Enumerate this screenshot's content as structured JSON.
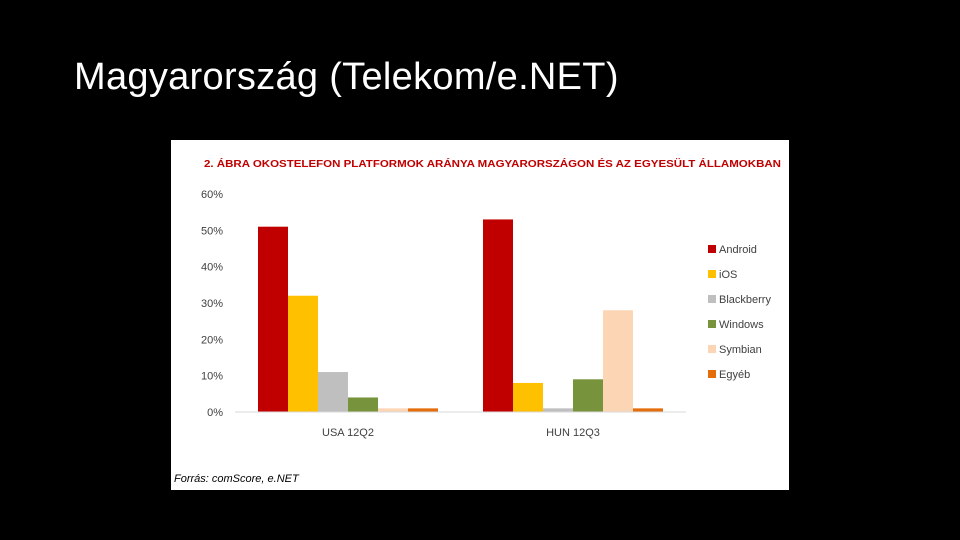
{
  "slide": {
    "title": "Magyarország (Telekom/e.NET)"
  },
  "chart_data": {
    "type": "bar",
    "title": "2. ÁBRA OKOSTELEFON PLATFORMOK ARÁNYA MAGYARORSZÁGON ÉS AZ EGYESÜLT ÁLLAMOKBAN",
    "xlabel": "",
    "ylabel": "",
    "categories": [
      "USA 12Q2",
      "HUN 12Q3"
    ],
    "y_ticks": [
      "0%",
      "10%",
      "20%",
      "30%",
      "40%",
      "50%",
      "60%"
    ],
    "ylim": [
      0,
      60
    ],
    "grid": false,
    "legend_position": "right",
    "series": [
      {
        "name": "Android",
        "color": "#c00000",
        "values": [
          51,
          53
        ]
      },
      {
        "name": "iOS",
        "color": "#ffc000",
        "values": [
          32,
          8
        ]
      },
      {
        "name": "Blackberry",
        "color": "#bfbfbf",
        "values": [
          11,
          1
        ]
      },
      {
        "name": "Windows",
        "color": "#77933c",
        "values": [
          4,
          9
        ]
      },
      {
        "name": "Symbian",
        "color": "#fcd5b5",
        "values": [
          1,
          28
        ]
      },
      {
        "name": "Egyéb",
        "color": "#e46c0a",
        "values": [
          1,
          1
        ]
      }
    ],
    "source_note": "Forrás: comScore, e.NET",
    "title_color": "#c00000"
  }
}
